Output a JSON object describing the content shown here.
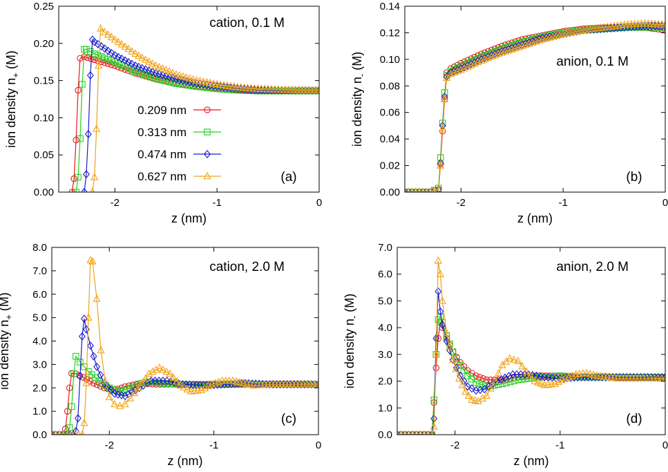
{
  "chart_data": [
    {
      "type": "line",
      "panel_label": "(a)",
      "annotation": "cation, 0.1 M",
      "xlabel": "z (nm)",
      "ylabel_main": "ion density n",
      "ylabel_sub": "+",
      "ylabel_unit": " (M)",
      "xlim": [
        -2.55,
        0
      ],
      "ylim": [
        0,
        0.25
      ],
      "xticks": [
        -2,
        -1,
        0
      ],
      "xtick_labels": [
        "-2",
        "-1",
        "0"
      ],
      "yticks": [
        0,
        0.05,
        0.1,
        0.15,
        0.2,
        0.25
      ],
      "ytick_labels": [
        "0.00",
        "0.05",
        "0.10",
        "0.15",
        "0.20",
        "0.25"
      ],
      "legend": true,
      "series": [
        {
          "name": "0.209 nm",
          "color": "#e8171b",
          "marker": "circle",
          "x": [
            -2.42,
            -2.4,
            -2.38,
            -2.36,
            -2.34,
            -2.3,
            -2.2,
            -2.0,
            -1.8,
            -1.6,
            -1.4,
            -1.2,
            -1.0,
            -0.8,
            -0.6,
            -0.4,
            -0.2,
            0.0
          ],
          "y": [
            0.0,
            0.018,
            0.07,
            0.137,
            0.18,
            0.182,
            0.178,
            0.17,
            0.16,
            0.152,
            0.146,
            0.142,
            0.139,
            0.137,
            0.136,
            0.136,
            0.136,
            0.136
          ]
        },
        {
          "name": "0.313 nm",
          "color": "#22d11d",
          "marker": "square",
          "x": [
            -2.38,
            -2.36,
            -2.34,
            -2.32,
            -2.3,
            -2.28,
            -2.2,
            -2.0,
            -1.8,
            -1.6,
            -1.4,
            -1.2,
            -1.0,
            -0.8,
            -0.6,
            -0.4,
            -0.2,
            0.0
          ],
          "y": [
            0.0,
            0.02,
            0.072,
            0.145,
            0.192,
            0.192,
            0.186,
            0.175,
            0.162,
            0.153,
            0.146,
            0.142,
            0.139,
            0.137,
            0.136,
            0.136,
            0.136,
            0.136
          ]
        },
        {
          "name": "0.474 nm",
          "color": "#1a1acc",
          "marker": "diamond",
          "x": [
            -2.3,
            -2.28,
            -2.26,
            -2.24,
            -2.22,
            -2.2,
            -2.1,
            -2.0,
            -1.8,
            -1.6,
            -1.4,
            -1.2,
            -1.0,
            -0.8,
            -0.6,
            -0.4,
            -0.2,
            0.0
          ],
          "y": [
            0.0,
            0.024,
            0.078,
            0.157,
            0.205,
            0.202,
            0.193,
            0.184,
            0.17,
            0.16,
            0.152,
            0.146,
            0.142,
            0.139,
            0.137,
            0.137,
            0.137,
            0.137
          ]
        },
        {
          "name": "0.627 nm",
          "color": "#f0a21a",
          "marker": "triangle",
          "x": [
            -2.22,
            -2.2,
            -2.18,
            -2.16,
            -2.14,
            -2.1,
            -2.0,
            -1.8,
            -1.6,
            -1.4,
            -1.2,
            -1.0,
            -0.8,
            -0.6,
            -0.4,
            -0.2,
            0.0
          ],
          "y": [
            0.0,
            0.02,
            0.085,
            0.17,
            0.22,
            0.215,
            0.205,
            0.186,
            0.17,
            0.158,
            0.15,
            0.145,
            0.141,
            0.139,
            0.138,
            0.137,
            0.137
          ]
        }
      ]
    },
    {
      "type": "line",
      "panel_label": "(b)",
      "annotation": "anion, 0.1 M",
      "xlabel": "z (nm)",
      "ylabel_main": "ion density n",
      "ylabel_sub": "-",
      "ylabel_unit": " (M)",
      "xlim": [
        -2.55,
        0
      ],
      "ylim": [
        0,
        0.14
      ],
      "xticks": [
        -2,
        -1,
        0
      ],
      "xtick_labels": [
        "-2",
        "-1",
        "0"
      ],
      "yticks": [
        0,
        0.02,
        0.04,
        0.06,
        0.08,
        0.1,
        0.12,
        0.14
      ],
      "ytick_labels": [
        "0.00",
        "0.02",
        "0.04",
        "0.06",
        "0.08",
        "0.10",
        "0.12",
        "0.14"
      ],
      "legend": false,
      "series": [
        {
          "name": "0.209 nm",
          "color": "#e8171b",
          "marker": "circle",
          "x": [
            -2.55,
            -2.3,
            -2.22,
            -2.2,
            -2.18,
            -2.16,
            -2.14,
            -2.1,
            -2.0,
            -1.8,
            -1.6,
            -1.4,
            -1.2,
            -1.0,
            -0.8,
            -0.6,
            -0.4,
            -0.2,
            0.0
          ],
          "y": [
            0.0,
            0.0,
            0.002,
            0.021,
            0.046,
            0.07,
            0.09,
            0.093,
            0.097,
            0.104,
            0.11,
            0.115,
            0.118,
            0.121,
            0.123,
            0.124,
            0.124,
            0.124,
            0.122
          ]
        },
        {
          "name": "0.313 nm",
          "color": "#22d11d",
          "marker": "square",
          "x": [
            -2.55,
            -2.3,
            -2.22,
            -2.2,
            -2.18,
            -2.16,
            -2.14,
            -2.1,
            -2.0,
            -1.8,
            -1.6,
            -1.4,
            -1.2,
            -1.0,
            -0.8,
            -0.6,
            -0.4,
            -0.2,
            0.0
          ],
          "y": [
            0.0,
            0.0,
            0.003,
            0.026,
            0.052,
            0.075,
            0.088,
            0.091,
            0.095,
            0.102,
            0.108,
            0.113,
            0.117,
            0.12,
            0.122,
            0.123,
            0.124,
            0.124,
            0.124
          ]
        },
        {
          "name": "0.474 nm",
          "color": "#1a1acc",
          "marker": "diamond",
          "x": [
            -2.55,
            -2.3,
            -2.22,
            -2.2,
            -2.18,
            -2.16,
            -2.14,
            -2.1,
            -2.0,
            -1.8,
            -1.6,
            -1.4,
            -1.2,
            -1.0,
            -0.8,
            -0.6,
            -0.4,
            -0.2,
            0.0
          ],
          "y": [
            0.0,
            0.0,
            0.002,
            0.022,
            0.05,
            0.072,
            0.087,
            0.09,
            0.093,
            0.1,
            0.106,
            0.111,
            0.116,
            0.119,
            0.122,
            0.123,
            0.124,
            0.125,
            0.125
          ]
        },
        {
          "name": "0.627 nm",
          "color": "#f0a21a",
          "marker": "triangle",
          "x": [
            -2.55,
            -2.3,
            -2.22,
            -2.2,
            -2.18,
            -2.16,
            -2.14,
            -2.1,
            -2.0,
            -1.8,
            -1.6,
            -1.4,
            -1.2,
            -1.0,
            -0.8,
            -0.6,
            -0.4,
            -0.2,
            0.0
          ],
          "y": [
            0.0,
            0.0,
            0.002,
            0.02,
            0.048,
            0.07,
            0.086,
            0.089,
            0.092,
            0.099,
            0.105,
            0.11,
            0.115,
            0.119,
            0.122,
            0.124,
            0.126,
            0.127,
            0.126
          ]
        }
      ]
    },
    {
      "type": "line",
      "panel_label": "(c)",
      "annotation": "cation, 2.0 M",
      "xlabel": "z (nm)",
      "ylabel_main": "ion density n",
      "ylabel_sub": "+",
      "ylabel_unit": " (M)",
      "xlim": [
        -2.55,
        0
      ],
      "ylim": [
        0,
        8
      ],
      "xticks": [
        -2,
        -1,
        0
      ],
      "xtick_labels": [
        "-2",
        "-1",
        "0"
      ],
      "yticks": [
        0,
        1,
        2,
        3,
        4,
        5,
        6,
        7,
        8
      ],
      "ytick_labels": [
        "0.0",
        "1.0",
        "2.0",
        "3.0",
        "4.0",
        "5.0",
        "6.0",
        "7.0",
        "8.0"
      ],
      "legend": false,
      "series": [
        {
          "name": "0.209 nm",
          "color": "#e8171b",
          "marker": "circle",
          "x": [
            -2.55,
            -2.44,
            -2.42,
            -2.4,
            -2.38,
            -2.36,
            -2.32,
            -2.25,
            -2.15,
            -2.05,
            -1.95,
            -1.85,
            -1.7,
            -1.55,
            -1.4,
            -1.2,
            -1.0,
            -0.8,
            -0.6,
            -0.4,
            -0.2,
            0.0
          ],
          "y": [
            0.0,
            0.0,
            0.25,
            1.0,
            2.0,
            2.62,
            2.6,
            2.45,
            2.2,
            2.0,
            1.9,
            2.05,
            2.2,
            2.15,
            2.15,
            2.15,
            2.15,
            2.15,
            2.15,
            2.15,
            2.15,
            2.15
          ]
        },
        {
          "name": "0.313 nm",
          "color": "#22d11d",
          "marker": "square",
          "x": [
            -2.55,
            -2.4,
            -2.38,
            -2.36,
            -2.34,
            -2.32,
            -2.28,
            -2.2,
            -2.1,
            -2.0,
            -1.9,
            -1.8,
            -1.65,
            -1.5,
            -1.35,
            -1.2,
            -1.0,
            -0.8,
            -0.6,
            -0.4,
            -0.2,
            0.0
          ],
          "y": [
            0.0,
            0.0,
            0.3,
            1.2,
            2.6,
            3.35,
            3.1,
            2.7,
            2.3,
            2.0,
            1.85,
            2.0,
            2.25,
            2.2,
            2.15,
            2.15,
            2.15,
            2.15,
            2.15,
            2.15,
            2.15,
            2.15
          ]
        },
        {
          "name": "0.474 nm",
          "color": "#1a1acc",
          "marker": "diamond",
          "x": [
            -2.55,
            -2.34,
            -2.32,
            -2.3,
            -2.28,
            -2.26,
            -2.24,
            -2.22,
            -2.18,
            -2.12,
            -2.05,
            -1.95,
            -1.85,
            -1.75,
            -1.6,
            -1.45,
            -1.3,
            -1.1,
            -0.9,
            -0.7,
            -0.5,
            -0.3,
            0.0
          ],
          "y": [
            0.0,
            0.0,
            0.15,
            0.7,
            2.5,
            4.2,
            4.95,
            4.5,
            3.8,
            2.9,
            2.2,
            1.75,
            1.65,
            1.9,
            2.3,
            2.3,
            2.15,
            2.1,
            2.15,
            2.2,
            2.15,
            2.15,
            2.15
          ]
        },
        {
          "name": "0.627 nm",
          "color": "#f0a21a",
          "marker": "triangle",
          "x": [
            -2.55,
            -2.26,
            -2.24,
            -2.22,
            -2.2,
            -2.18,
            -2.16,
            -2.12,
            -2.08,
            -2.04,
            -2.0,
            -1.95,
            -1.9,
            -1.85,
            -1.8,
            -1.72,
            -1.62,
            -1.52,
            -1.42,
            -1.32,
            -1.22,
            -1.12,
            -1.02,
            -0.92,
            -0.82,
            -0.72,
            -0.62,
            -0.45,
            -0.25,
            0.0
          ],
          "y": [
            0.0,
            0.0,
            0.5,
            2.2,
            5.0,
            7.45,
            7.4,
            5.8,
            3.6,
            2.3,
            1.6,
            1.3,
            1.22,
            1.3,
            1.55,
            2.0,
            2.6,
            2.85,
            2.6,
            2.1,
            1.85,
            1.9,
            2.15,
            2.3,
            2.3,
            2.2,
            2.1,
            2.15,
            2.15,
            2.15
          ]
        }
      ]
    },
    {
      "type": "line",
      "panel_label": "(d)",
      "annotation": "anion, 2.0 M",
      "xlabel": "z (nm)",
      "ylabel_main": "ion density n",
      "ylabel_sub": "-",
      "ylabel_unit": " (M)",
      "xlim": [
        -2.55,
        0
      ],
      "ylim": [
        0,
        7
      ],
      "xticks": [
        -2,
        -1,
        0
      ],
      "xtick_labels": [
        "-2",
        "-1",
        "0"
      ],
      "yticks": [
        0,
        1,
        2,
        3,
        4,
        5,
        6,
        7
      ],
      "ytick_labels": [
        "0.0",
        "1.0",
        "2.0",
        "3.0",
        "4.0",
        "5.0",
        "6.0",
        "7.0"
      ],
      "legend": false,
      "series": [
        {
          "name": "0.209 nm",
          "color": "#e8171b",
          "marker": "circle",
          "x": [
            -2.55,
            -2.22,
            -2.2,
            -2.18,
            -2.16,
            -2.14,
            -2.12,
            -2.08,
            -2.02,
            -1.95,
            -1.88,
            -1.8,
            -1.7,
            -1.55,
            -1.4,
            -1.2,
            -1.0,
            -0.8,
            -0.6,
            -0.4,
            -0.2,
            0.0
          ],
          "y": [
            0.0,
            0.0,
            1.2,
            2.5,
            3.6,
            4.2,
            4.0,
            3.6,
            3.1,
            2.7,
            2.4,
            2.2,
            2.05,
            2.05,
            2.15,
            2.2,
            2.2,
            2.15,
            2.15,
            2.15,
            2.15,
            2.15
          ]
        },
        {
          "name": "0.313 nm",
          "color": "#22d11d",
          "marker": "square",
          "x": [
            -2.55,
            -2.22,
            -2.2,
            -2.18,
            -2.16,
            -2.14,
            -2.12,
            -2.08,
            -2.02,
            -1.95,
            -1.88,
            -1.8,
            -1.7,
            -1.55,
            -1.4,
            -1.2,
            -1.0,
            -0.8,
            -0.6,
            -0.4,
            -0.2,
            0.0
          ],
          "y": [
            0.0,
            0.0,
            1.3,
            3.0,
            4.3,
            4.4,
            4.2,
            3.7,
            3.1,
            2.6,
            2.2,
            1.95,
            1.8,
            1.9,
            2.05,
            2.15,
            2.2,
            2.15,
            2.15,
            2.15,
            2.15,
            2.15
          ]
        },
        {
          "name": "0.474 nm",
          "color": "#1a1acc",
          "marker": "diamond",
          "x": [
            -2.55,
            -2.22,
            -2.2,
            -2.18,
            -2.16,
            -2.14,
            -2.12,
            -2.08,
            -2.02,
            -1.95,
            -1.88,
            -1.8,
            -1.72,
            -1.6,
            -1.45,
            -1.3,
            -1.15,
            -1.0,
            -0.8,
            -0.6,
            -0.4,
            -0.2,
            0.0
          ],
          "y": [
            0.0,
            0.0,
            0.6,
            3.6,
            5.35,
            4.6,
            4.1,
            3.5,
            2.8,
            2.2,
            1.8,
            1.65,
            1.7,
            2.0,
            2.25,
            2.25,
            2.15,
            2.1,
            2.15,
            2.15,
            2.15,
            2.15,
            2.15
          ]
        },
        {
          "name": "0.627 nm",
          "color": "#f0a21a",
          "marker": "triangle",
          "x": [
            -2.55,
            -2.22,
            -2.2,
            -2.18,
            -2.16,
            -2.14,
            -2.12,
            -2.08,
            -2.02,
            -1.96,
            -1.9,
            -1.84,
            -1.78,
            -1.7,
            -1.62,
            -1.55,
            -1.48,
            -1.4,
            -1.32,
            -1.24,
            -1.15,
            -1.05,
            -0.95,
            -0.85,
            -0.75,
            -0.65,
            -0.45,
            -0.25,
            0.0
          ],
          "y": [
            0.0,
            0.0,
            0.3,
            3.0,
            6.5,
            6.0,
            5.0,
            3.8,
            2.8,
            2.1,
            1.6,
            1.3,
            1.25,
            1.45,
            2.0,
            2.6,
            2.85,
            2.75,
            2.35,
            2.0,
            1.85,
            1.9,
            2.1,
            2.25,
            2.3,
            2.2,
            2.1,
            2.1,
            2.1
          ]
        }
      ]
    }
  ]
}
